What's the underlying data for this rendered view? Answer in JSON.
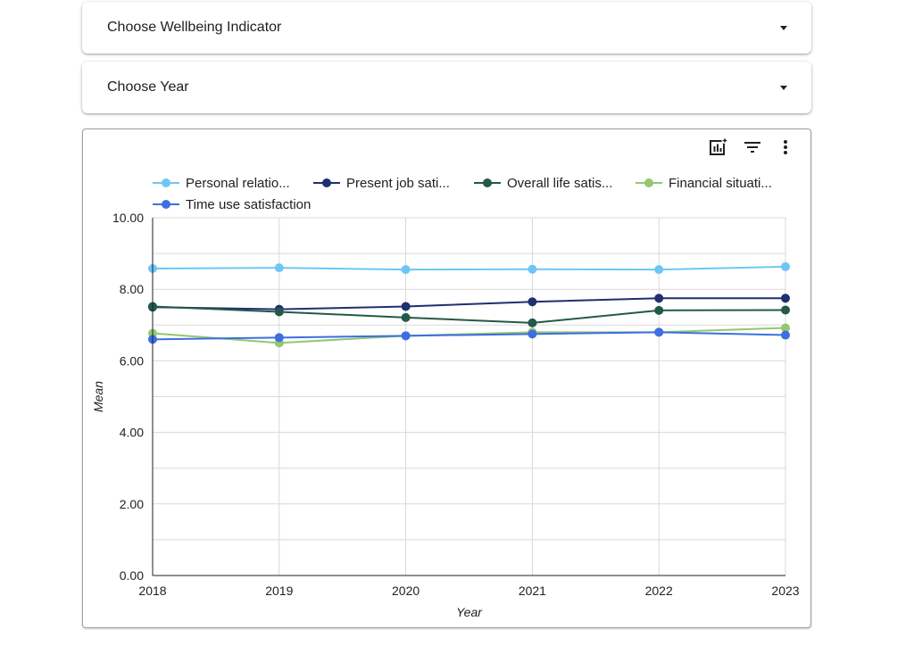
{
  "controls": {
    "indicator_label": "Choose Wellbeing Indicator",
    "year_label": "Choose Year"
  },
  "toolbar": {
    "icons": [
      "insights-chart-icon",
      "filter-icon",
      "more-vert-icon"
    ]
  },
  "chart_data": {
    "type": "line",
    "title": "",
    "xlabel": "Year",
    "ylabel": "Mean",
    "x": [
      "2018",
      "2019",
      "2020",
      "2021",
      "2022",
      "2023"
    ],
    "ylim": [
      0,
      10
    ],
    "yticks": [
      "0.00",
      "2.00",
      "4.00",
      "6.00",
      "8.00",
      "10.00"
    ],
    "grid": true,
    "legend_position": "top",
    "series": [
      {
        "name": "Personal relatio...",
        "color": "#6ec6f5",
        "values": [
          8.58,
          8.6,
          8.55,
          8.56,
          8.55,
          8.63
        ]
      },
      {
        "name": "Present job sati...",
        "color": "#1f2f6f",
        "values": [
          7.5,
          7.44,
          7.52,
          7.65,
          7.75,
          7.75
        ]
      },
      {
        "name": "Overall life satis...",
        "color": "#23594a",
        "values": [
          7.52,
          7.37,
          7.21,
          7.06,
          7.41,
          7.42
        ]
      },
      {
        "name": "Financial situati...",
        "color": "#93c772",
        "values": [
          6.77,
          6.5,
          6.7,
          6.8,
          6.8,
          6.92
        ]
      },
      {
        "name": "Time use satisfaction",
        "color": "#3d6fe0",
        "values": [
          6.6,
          6.65,
          6.7,
          6.75,
          6.8,
          6.72
        ]
      }
    ]
  }
}
